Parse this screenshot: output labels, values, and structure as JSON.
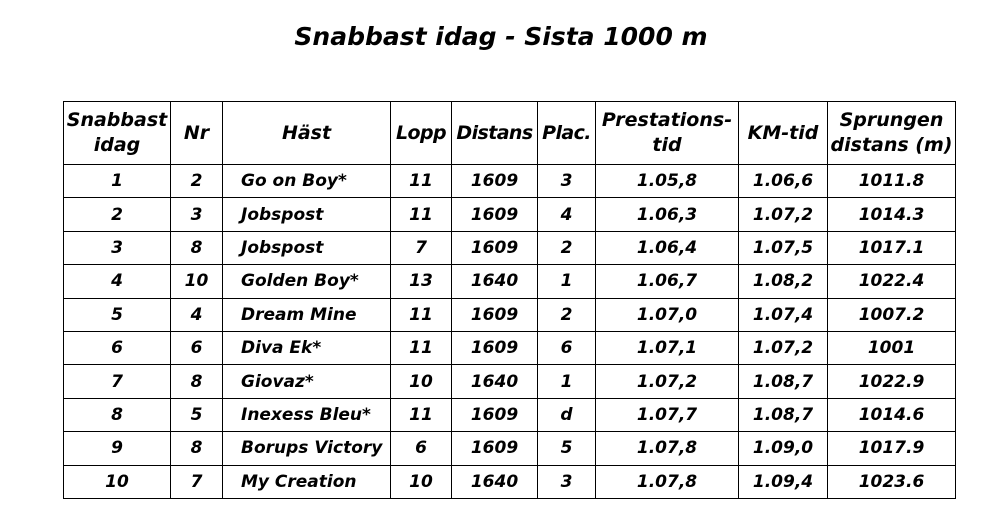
{
  "title": "Snabbast idag - Sista 1000 m",
  "table": {
    "headers": {
      "rank": [
        "Snabbast",
        "idag"
      ],
      "nr": "Nr",
      "horse": "Häst",
      "race": "Lopp",
      "distance": "Distans",
      "place": "Plac.",
      "perf_time": [
        "Prestations-",
        "tid"
      ],
      "km_time": "KM-tid",
      "run_distance": [
        "Sprungen",
        "distans (m)"
      ]
    },
    "rows": [
      {
        "rank": "1",
        "nr": "2",
        "horse": "Go on Boy*",
        "race": "11",
        "distance": "1609",
        "place": "3",
        "perf_time": "1.05,8",
        "km_time": "1.06,6",
        "run_distance": "1011.8"
      },
      {
        "rank": "2",
        "nr": "3",
        "horse": "Jobspost",
        "race": "11",
        "distance": "1609",
        "place": "4",
        "perf_time": "1.06,3",
        "km_time": "1.07,2",
        "run_distance": "1014.3"
      },
      {
        "rank": "3",
        "nr": "8",
        "horse": "Jobspost",
        "race": "7",
        "distance": "1609",
        "place": "2",
        "perf_time": "1.06,4",
        "km_time": "1.07,5",
        "run_distance": "1017.1"
      },
      {
        "rank": "4",
        "nr": "10",
        "horse": "Golden Boy*",
        "race": "13",
        "distance": "1640",
        "place": "1",
        "perf_time": "1.06,7",
        "km_time": "1.08,2",
        "run_distance": "1022.4"
      },
      {
        "rank": "5",
        "nr": "4",
        "horse": "Dream Mine",
        "race": "11",
        "distance": "1609",
        "place": "2",
        "perf_time": "1.07,0",
        "km_time": "1.07,4",
        "run_distance": "1007.2"
      },
      {
        "rank": "6",
        "nr": "6",
        "horse": "Diva Ek*",
        "race": "11",
        "distance": "1609",
        "place": "6",
        "perf_time": "1.07,1",
        "km_time": "1.07,2",
        "run_distance": "1001"
      },
      {
        "rank": "7",
        "nr": "8",
        "horse": "Giovaz*",
        "race": "10",
        "distance": "1640",
        "place": "1",
        "perf_time": "1.07,2",
        "km_time": "1.08,7",
        "run_distance": "1022.9"
      },
      {
        "rank": "8",
        "nr": "5",
        "horse": "Inexess Bleu*",
        "race": "11",
        "distance": "1609",
        "place": "d",
        "perf_time": "1.07,7",
        "km_time": "1.08,7",
        "run_distance": "1014.6"
      },
      {
        "rank": "9",
        "nr": "8",
        "horse": "Borups Victory",
        "race": "6",
        "distance": "1609",
        "place": "5",
        "perf_time": "1.07,8",
        "km_time": "1.09,0",
        "run_distance": "1017.9"
      },
      {
        "rank": "10",
        "nr": "7",
        "horse": "My Creation",
        "race": "10",
        "distance": "1640",
        "place": "3",
        "perf_time": "1.07,8",
        "km_time": "1.09,4",
        "run_distance": "1023.6"
      }
    ]
  }
}
